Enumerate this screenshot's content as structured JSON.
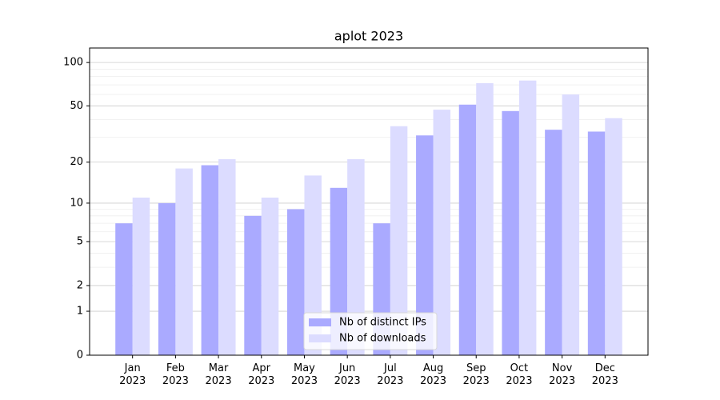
{
  "chart_data": {
    "type": "bar",
    "title": "aplot 2023",
    "scale": "log1p",
    "categories": [
      "Jan\n2023",
      "Feb\n2023",
      "Mar\n2023",
      "Apr\n2023",
      "May\n2023",
      "Jun\n2023",
      "Jul\n2023",
      "Aug\n2023",
      "Sep\n2023",
      "Oct\n2023",
      "Nov\n2023",
      "Dec\n2023"
    ],
    "series": [
      {
        "name": "Nb of distinct IPs",
        "color": "#aaaaff",
        "values": [
          7,
          10,
          19,
          8,
          9,
          13,
          7,
          31,
          51,
          46,
          34,
          33
        ]
      },
      {
        "name": "Nb of downloads",
        "color": "#dcdcff",
        "values": [
          11,
          18,
          21,
          11,
          16,
          21,
          36,
          47,
          72,
          75,
          60,
          41
        ]
      }
    ],
    "ylim": [
      0,
      126
    ],
    "yticks": [
      0,
      1,
      2,
      5,
      10,
      20,
      50,
      100
    ],
    "minor_yticks": [
      3,
      4,
      6,
      7,
      8,
      9,
      30,
      40,
      60,
      70,
      80,
      90
    ],
    "grid": true,
    "legend": "lower center"
  }
}
